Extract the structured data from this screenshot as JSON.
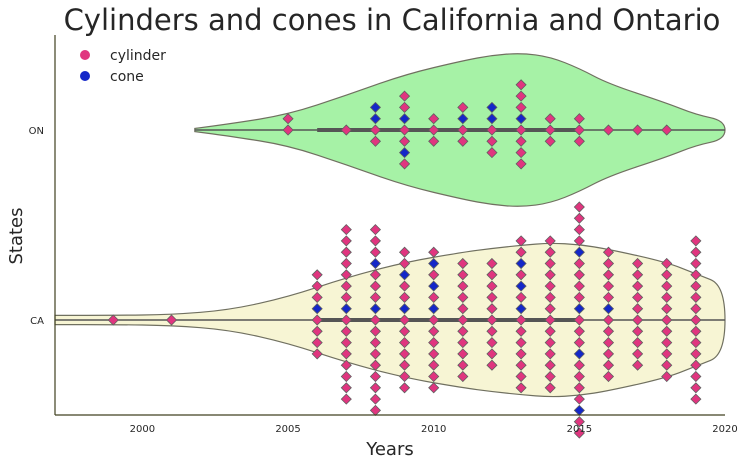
{
  "chart_data": {
    "type": "violin+swarm",
    "title": "Cylinders and cones in California and Ontario",
    "xlabel": "Years",
    "ylabel": "States",
    "xlim": [
      1997,
      2020
    ],
    "x_ticks": [
      2000,
      2005,
      2010,
      2015,
      2020
    ],
    "categories": [
      "ON",
      "CA"
    ],
    "colors": {
      "cylinder": "#e0357f",
      "cone": "#1427c8",
      "violin_ON": "#a6f2a6",
      "violin_CA": "#f7f5d4",
      "violin_edge": "#707060",
      "axis": "#404020"
    },
    "legend": {
      "placement": "top-left",
      "entries": [
        {
          "label": "cylinder",
          "color": "#e0357f"
        },
        {
          "label": "cone",
          "color": "#1427c8"
        }
      ]
    },
    "violins": [
      {
        "category": "ON",
        "profile": [
          [
            2001.8,
            0.02
          ],
          [
            2003,
            0.08
          ],
          [
            2005,
            0.2
          ],
          [
            2007,
            0.45
          ],
          [
            2009,
            0.72
          ],
          [
            2011,
            0.9
          ],
          [
            2012,
            0.97
          ],
          [
            2013,
            1.0
          ],
          [
            2014,
            0.95
          ],
          [
            2015,
            0.8
          ],
          [
            2016,
            0.6
          ],
          [
            2018,
            0.35
          ],
          [
            2019,
            0.2
          ],
          [
            2020,
            0.12
          ]
        ]
      },
      {
        "category": "CA",
        "profile": [
          [
            1997,
            0.06
          ],
          [
            1999,
            0.06
          ],
          [
            2001,
            0.07
          ],
          [
            2003,
            0.13
          ],
          [
            2005,
            0.3
          ],
          [
            2007,
            0.55
          ],
          [
            2009,
            0.75
          ],
          [
            2011,
            0.88
          ],
          [
            2012,
            0.93
          ],
          [
            2013,
            0.97
          ],
          [
            2014,
            1.0
          ],
          [
            2015,
            0.98
          ],
          [
            2016,
            0.92
          ],
          [
            2018,
            0.75
          ],
          [
            2019,
            0.6
          ],
          [
            2020,
            0.45
          ]
        ]
      }
    ],
    "series": [
      {
        "name": "cylinder",
        "ON": {
          "2005": 2,
          "2007": 1,
          "2008": 2,
          "2009": 5,
          "2010": 3,
          "2011": 3,
          "2012": 3,
          "2013": 7,
          "2014": 3,
          "2015": 3,
          "2016": 1,
          "2017": 1,
          "2018": 1
        },
        "CA": {
          "1999": 1,
          "2001": 1,
          "2006": 7,
          "2007": 15,
          "2008": 15,
          "2009": 11,
          "2010": 10,
          "2011": 11,
          "2012": 10,
          "2013": 11,
          "2014": 14,
          "2015": 17,
          "2016": 11,
          "2017": 10,
          "2018": 11,
          "2019": 15
        }
      },
      {
        "name": "cone",
        "ON": {
          "2008": 2,
          "2009": 2,
          "2011": 1,
          "2012": 2,
          "2013": 1
        },
        "CA": {
          "2006": 1,
          "2007": 1,
          "2008": 2,
          "2009": 2,
          "2010": 3,
          "2013": 3,
          "2015": 4,
          "2016": 1
        }
      }
    ]
  }
}
